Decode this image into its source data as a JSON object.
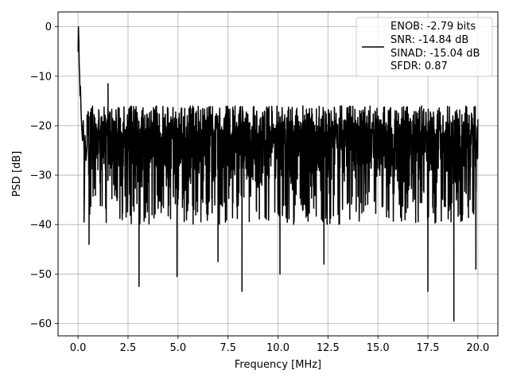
{
  "chart_data": {
    "type": "line",
    "title": "",
    "xlabel": "Frequency [MHz]",
    "ylabel": "PSD [dB]",
    "xlim": [
      -1.0,
      21.0
    ],
    "ylim": [
      -62.5,
      3.0
    ],
    "x_ticks": [
      0.0,
      2.5,
      5.0,
      7.5,
      10.0,
      12.5,
      15.0,
      17.5,
      20.0
    ],
    "x_tick_labels": [
      "0.0",
      "2.5",
      "5.0",
      "7.5",
      "10.0",
      "12.5",
      "15.0",
      "17.5",
      "20.0"
    ],
    "y_ticks": [
      0,
      -10,
      -20,
      -30,
      -40,
      -50,
      -60
    ],
    "y_tick_labels": [
      "0",
      "−10",
      "−20",
      "−30",
      "−40",
      "−50",
      "−60"
    ],
    "grid": true,
    "legend_position": "top-right",
    "legend_entries": [
      "ENOB: -2.79 bits",
      "SNR: -14.84 dB",
      "SINAD: -15.04 dB",
      "SFDR: 0.87"
    ],
    "line_color": "#000000",
    "grid_color": "#b0b0b0",
    "series": [
      {
        "x": [
          0.0,
          0.02,
          0.04,
          0.06,
          0.08,
          0.1,
          0.12,
          0.15,
          0.18,
          0.22,
          0.26,
          0.3,
          0.35,
          0.4,
          0.45
        ],
        "y": [
          -5,
          0,
          -3,
          -8,
          -10,
          -14,
          -12,
          -17,
          -20,
          -23,
          -19,
          -25,
          -22,
          -27,
          -24
        ]
      }
    ],
    "envelope": {
      "description": "noise floor beyond 0.5 MHz",
      "x_range": [
        0.45,
        20.0
      ],
      "upper_typical": [
        -18,
        -13
      ],
      "lower_typical": [
        -40,
        -30
      ],
      "center": -27
    },
    "notable_points": [
      {
        "x": 0.3,
        "y": -39.5
      },
      {
        "x": 0.55,
        "y": -44
      },
      {
        "x": 1.5,
        "y": -11.5
      },
      {
        "x": 3.05,
        "y": -52.5
      },
      {
        "x": 4.95,
        "y": -50.5
      },
      {
        "x": 7.0,
        "y": -47.5
      },
      {
        "x": 8.2,
        "y": -53.5
      },
      {
        "x": 10.1,
        "y": -50
      },
      {
        "x": 12.3,
        "y": -48
      },
      {
        "x": 17.5,
        "y": -53.5
      },
      {
        "x": 18.8,
        "y": -59.5
      },
      {
        "x": 19.9,
        "y": -49
      }
    ]
  }
}
